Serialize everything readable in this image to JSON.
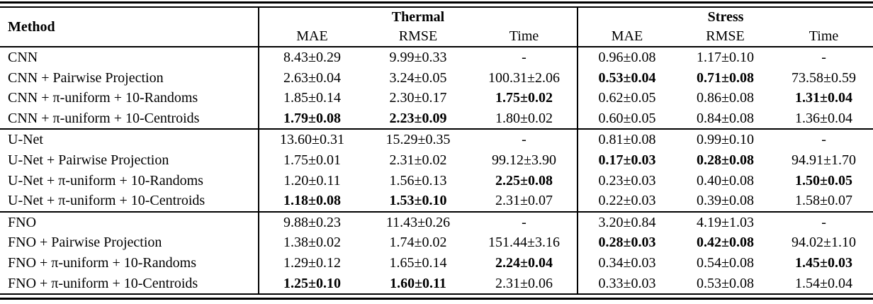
{
  "table": {
    "method_header": "Method",
    "group_headers": [
      "Thermal",
      "Stress"
    ],
    "sub_headers": [
      "MAE",
      "RMSE",
      "Time",
      "MAE",
      "RMSE",
      "Time"
    ],
    "colors": {
      "text": "#000000",
      "background": "#ffffff",
      "rule": "#000000"
    },
    "groups": [
      {
        "rows": [
          {
            "method": "CNN",
            "cells": [
              {
                "v": "8.43±0.29",
                "b": false
              },
              {
                "v": "9.99±0.33",
                "b": false
              },
              {
                "v": "-",
                "b": false
              },
              {
                "v": "0.96±0.08",
                "b": false
              },
              {
                "v": "1.17±0.10",
                "b": false
              },
              {
                "v": "-",
                "b": false
              }
            ]
          },
          {
            "method": "CNN + Pairwise Projection",
            "cells": [
              {
                "v": "2.63±0.04",
                "b": false
              },
              {
                "v": "3.24±0.05",
                "b": false
              },
              {
                "v": "100.31±2.06",
                "b": false
              },
              {
                "v": "0.53±0.04",
                "b": true
              },
              {
                "v": "0.71±0.08",
                "b": true
              },
              {
                "v": "73.58±0.59",
                "b": false
              }
            ]
          },
          {
            "method": "CNN + π-uniform + 10-Randoms",
            "cells": [
              {
                "v": "1.85±0.14",
                "b": false
              },
              {
                "v": "2.30±0.17",
                "b": false
              },
              {
                "v": "1.75±0.02",
                "b": true
              },
              {
                "v": "0.62±0.05",
                "b": false
              },
              {
                "v": "0.86±0.08",
                "b": false
              },
              {
                "v": "1.31±0.04",
                "b": true
              }
            ]
          },
          {
            "method": "CNN + π-uniform + 10-Centroids",
            "cells": [
              {
                "v": "1.79±0.08",
                "b": true
              },
              {
                "v": "2.23±0.09",
                "b": true
              },
              {
                "v": "1.80±0.02",
                "b": false
              },
              {
                "v": "0.60±0.05",
                "b": false
              },
              {
                "v": "0.84±0.08",
                "b": false
              },
              {
                "v": "1.36±0.04",
                "b": false
              }
            ]
          }
        ]
      },
      {
        "rows": [
          {
            "method": "U-Net",
            "cells": [
              {
                "v": "13.60±0.31",
                "b": false
              },
              {
                "v": "15.29±0.35",
                "b": false
              },
              {
                "v": "-",
                "b": false
              },
              {
                "v": "0.81±0.08",
                "b": false
              },
              {
                "v": "0.99±0.10",
                "b": false
              },
              {
                "v": "-",
                "b": false
              }
            ]
          },
          {
            "method": "U-Net + Pairwise Projection",
            "cells": [
              {
                "v": "1.75±0.01",
                "b": false
              },
              {
                "v": "2.31±0.02",
                "b": false
              },
              {
                "v": "99.12±3.90",
                "b": false
              },
              {
                "v": "0.17±0.03",
                "b": true
              },
              {
                "v": "0.28±0.08",
                "b": true
              },
              {
                "v": "94.91±1.70",
                "b": false
              }
            ]
          },
          {
            "method": "U-Net + π-uniform + 10-Randoms",
            "cells": [
              {
                "v": "1.20±0.11",
                "b": false
              },
              {
                "v": "1.56±0.13",
                "b": false
              },
              {
                "v": "2.25±0.08",
                "b": true
              },
              {
                "v": "0.23±0.03",
                "b": false
              },
              {
                "v": "0.40±0.08",
                "b": false
              },
              {
                "v": "1.50±0.05",
                "b": true
              }
            ]
          },
          {
            "method": "U-Net + π-uniform + 10-Centroids",
            "cells": [
              {
                "v": "1.18±0.08",
                "b": true
              },
              {
                "v": "1.53±0.10",
                "b": true
              },
              {
                "v": "2.31±0.07",
                "b": false
              },
              {
                "v": "0.22±0.03",
                "b": false
              },
              {
                "v": "0.39±0.08",
                "b": false
              },
              {
                "v": "1.58±0.07",
                "b": false
              }
            ]
          }
        ]
      },
      {
        "rows": [
          {
            "method": "FNO",
            "cells": [
              {
                "v": "9.88±0.23",
                "b": false
              },
              {
                "v": "11.43±0.26",
                "b": false
              },
              {
                "v": "-",
                "b": false
              },
              {
                "v": "3.20±0.84",
                "b": false
              },
              {
                "v": "4.19±1.03",
                "b": false
              },
              {
                "v": "-",
                "b": false
              }
            ]
          },
          {
            "method": "FNO + Pairwise Projection",
            "cells": [
              {
                "v": "1.38±0.02",
                "b": false
              },
              {
                "v": "1.74±0.02",
                "b": false
              },
              {
                "v": "151.44±3.16",
                "b": false
              },
              {
                "v": "0.28±0.03",
                "b": true
              },
              {
                "v": "0.42±0.08",
                "b": true
              },
              {
                "v": "94.02±1.10",
                "b": false
              }
            ]
          },
          {
            "method": "FNO + π-uniform + 10-Randoms",
            "cells": [
              {
                "v": "1.29±0.12",
                "b": false
              },
              {
                "v": "1.65±0.14",
                "b": false
              },
              {
                "v": "2.24±0.04",
                "b": true
              },
              {
                "v": "0.34±0.03",
                "b": false
              },
              {
                "v": "0.54±0.08",
                "b": false
              },
              {
                "v": "1.45±0.03",
                "b": true
              }
            ]
          },
          {
            "method": "FNO + π-uniform + 10-Centroids",
            "cells": [
              {
                "v": "1.25±0.10",
                "b": true
              },
              {
                "v": "1.60±0.11",
                "b": true
              },
              {
                "v": "2.31±0.06",
                "b": false
              },
              {
                "v": "0.33±0.03",
                "b": false
              },
              {
                "v": "0.53±0.08",
                "b": false
              },
              {
                "v": "1.54±0.04",
                "b": false
              }
            ]
          }
        ]
      }
    ]
  }
}
